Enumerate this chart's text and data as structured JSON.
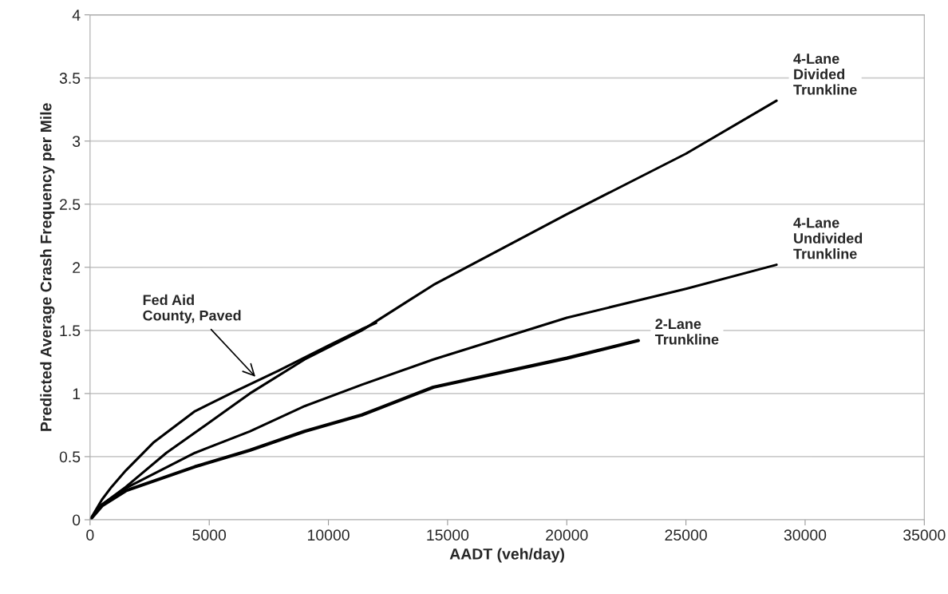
{
  "chart_data": {
    "type": "line",
    "xlabel": "AADT (veh/day)",
    "ylabel": "Predicted Average Crash Frequency per Mile",
    "xlim": [
      0,
      35000
    ],
    "xticks": [
      0,
      5000,
      10000,
      15000,
      20000,
      25000,
      30000,
      35000
    ],
    "ylim": [
      0,
      4
    ],
    "yticks": [
      0,
      0.5,
      1,
      1.5,
      2,
      2.5,
      3,
      3.5,
      4
    ],
    "grid": "y",
    "legend": false,
    "marker": "none",
    "line_style": "solid",
    "series": [
      {
        "color": "#000000",
        "x": [
          0,
          500,
          900,
          1500,
          2650,
          4400,
          6000,
          7900,
          10000,
          11400,
          12000
        ],
        "values": [
          0,
          0.16,
          0.26,
          0.39,
          0.61,
          0.86,
          1.01,
          1.18,
          1.38,
          1.51,
          1.56
        ]
      },
      {
        "name": "4-Lane\nDivided\nTrunkline",
        "color": "#000000",
        "x": [
          0,
          500,
          1500,
          3200,
          5000,
          6700,
          9000,
          11400,
          14400,
          20000,
          25000,
          28800
        ],
        "values": [
          0,
          0.12,
          0.26,
          0.53,
          0.77,
          1.0,
          1.27,
          1.5,
          1.86,
          2.42,
          2.9,
          3.32
        ]
      },
      {
        "name": "4-Lane\nUndivided\nTrunkline",
        "color": "#000000",
        "x": [
          0,
          500,
          1500,
          4400,
          6700,
          9000,
          11400,
          14400,
          20000,
          25000,
          28800
        ],
        "values": [
          0,
          0.12,
          0.25,
          0.53,
          0.7,
          0.9,
          1.07,
          1.27,
          1.6,
          1.83,
          2.02
        ]
      },
      {
        "name": "2-Lane\nTrunkline",
        "color": "#000000",
        "x": [
          0,
          500,
          1500,
          4400,
          6700,
          9000,
          11400,
          14400,
          20000,
          23000
        ],
        "values": [
          0,
          0.11,
          0.23,
          0.42,
          0.55,
          0.7,
          0.83,
          1.05,
          1.28,
          1.42
        ]
      }
    ],
    "annotations": [
      {
        "text": "Fed Aid\nCounty, Paved",
        "x": 7000,
        "y": 1.12
      }
    ]
  }
}
